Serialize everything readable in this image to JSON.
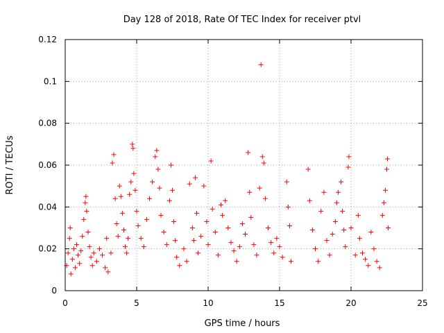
{
  "chart_data": {
    "type": "scatter",
    "title": "Day 128 of 2018, Rate Of TEC Index for receiver ptvl",
    "xlabel": "GPS time / hours",
    "ylabel": "ROTI / TECUs",
    "xlim": [
      0,
      25
    ],
    "ylim": [
      0,
      0.12
    ],
    "xticks": [
      0,
      5,
      10,
      15,
      20,
      25
    ],
    "yticks": [
      0,
      0.02,
      0.04,
      0.06,
      0.08,
      0.1,
      0.12
    ],
    "xtick_labels": [
      "0",
      "5",
      "10",
      "15",
      "20",
      "25"
    ],
    "ytick_labels": [
      "0",
      "0.02",
      "0.04",
      "0.06",
      "0.08",
      "0.1",
      "0.12"
    ],
    "grid": true,
    "marker": "+",
    "marker_color": "#ff0000",
    "series": [
      {
        "name": "ROTI",
        "points": [
          [
            0.1,
            0.012
          ],
          [
            0.2,
            0.018
          ],
          [
            0.3,
            0.025
          ],
          [
            0.35,
            0.03
          ],
          [
            0.4,
            0.008
          ],
          [
            0.5,
            0.015
          ],
          [
            0.6,
            0.02
          ],
          [
            0.7,
            0.011
          ],
          [
            0.8,
            0.022
          ],
          [
            0.9,
            0.017
          ],
          [
            1.0,
            0.013
          ],
          [
            1.1,
            0.019
          ],
          [
            1.2,
            0.026
          ],
          [
            1.3,
            0.034
          ],
          [
            1.4,
            0.042
          ],
          [
            1.45,
            0.045
          ],
          [
            1.5,
            0.038
          ],
          [
            1.6,
            0.028
          ],
          [
            1.7,
            0.021
          ],
          [
            1.8,
            0.016
          ],
          [
            1.9,
            0.012
          ],
          [
            2.0,
            0.018
          ],
          [
            2.2,
            0.014
          ],
          [
            2.4,
            0.02
          ],
          [
            2.6,
            0.017
          ],
          [
            2.8,
            0.011
          ],
          [
            2.9,
            0.025
          ],
          [
            3.0,
            0.009
          ],
          [
            3.2,
            0.018
          ],
          [
            3.3,
            0.061
          ],
          [
            3.4,
            0.065
          ],
          [
            3.5,
            0.044
          ],
          [
            3.6,
            0.032
          ],
          [
            3.7,
            0.026
          ],
          [
            3.8,
            0.05
          ],
          [
            3.9,
            0.045
          ],
          [
            4.0,
            0.037
          ],
          [
            4.1,
            0.029
          ],
          [
            4.2,
            0.021
          ],
          [
            4.3,
            0.018
          ],
          [
            4.4,
            0.025
          ],
          [
            4.5,
            0.046
          ],
          [
            4.6,
            0.052
          ],
          [
            4.7,
            0.07
          ],
          [
            4.75,
            0.068
          ],
          [
            4.8,
            0.056
          ],
          [
            4.9,
            0.048
          ],
          [
            5.0,
            0.038
          ],
          [
            5.1,
            0.031
          ],
          [
            5.3,
            0.025
          ],
          [
            5.5,
            0.021
          ],
          [
            5.7,
            0.034
          ],
          [
            5.9,
            0.044
          ],
          [
            6.1,
            0.052
          ],
          [
            6.3,
            0.064
          ],
          [
            6.4,
            0.067
          ],
          [
            6.5,
            0.058
          ],
          [
            6.6,
            0.049
          ],
          [
            6.7,
            0.036
          ],
          [
            6.9,
            0.028
          ],
          [
            7.1,
            0.022
          ],
          [
            7.3,
            0.043
          ],
          [
            7.4,
            0.06
          ],
          [
            7.5,
            0.048
          ],
          [
            7.6,
            0.033
          ],
          [
            7.7,
            0.024
          ],
          [
            7.8,
            0.016
          ],
          [
            8.0,
            0.012
          ],
          [
            8.3,
            0.02
          ],
          [
            8.5,
            0.014
          ],
          [
            8.7,
            0.051
          ],
          [
            8.9,
            0.03
          ],
          [
            9.0,
            0.024
          ],
          [
            9.1,
            0.054
          ],
          [
            9.2,
            0.037
          ],
          [
            9.3,
            0.018
          ],
          [
            9.5,
            0.026
          ],
          [
            9.7,
            0.05
          ],
          [
            9.9,
            0.033
          ],
          [
            10.0,
            0.022
          ],
          [
            10.2,
            0.062
          ],
          [
            10.3,
            0.039
          ],
          [
            10.5,
            0.028
          ],
          [
            10.7,
            0.017
          ],
          [
            10.9,
            0.041
          ],
          [
            11.0,
            0.036
          ],
          [
            11.2,
            0.043
          ],
          [
            11.4,
            0.03
          ],
          [
            11.6,
            0.023
          ],
          [
            11.8,
            0.019
          ],
          [
            12.0,
            0.014
          ],
          [
            12.2,
            0.021
          ],
          [
            12.4,
            0.032
          ],
          [
            12.6,
            0.027
          ],
          [
            12.8,
            0.066
          ],
          [
            12.9,
            0.047
          ],
          [
            13.0,
            0.035
          ],
          [
            13.2,
            0.022
          ],
          [
            13.4,
            0.017
          ],
          [
            13.6,
            0.049
          ],
          [
            13.7,
            0.108
          ],
          [
            13.8,
            0.064
          ],
          [
            13.9,
            0.061
          ],
          [
            14.0,
            0.044
          ],
          [
            14.2,
            0.03
          ],
          [
            14.4,
            0.023
          ],
          [
            14.6,
            0.018
          ],
          [
            14.8,
            0.025
          ],
          [
            15.0,
            0.021
          ],
          [
            15.2,
            0.016
          ],
          [
            15.5,
            0.052
          ],
          [
            15.6,
            0.04
          ],
          [
            15.7,
            0.031
          ],
          [
            15.8,
            0.014
          ],
          [
            17.0,
            0.058
          ],
          [
            17.1,
            0.043
          ],
          [
            17.3,
            0.029
          ],
          [
            17.5,
            0.02
          ],
          [
            17.7,
            0.014
          ],
          [
            17.9,
            0.038
          ],
          [
            18.1,
            0.047
          ],
          [
            18.3,
            0.024
          ],
          [
            18.5,
            0.017
          ],
          [
            18.7,
            0.027
          ],
          [
            18.9,
            0.033
          ],
          [
            19.0,
            0.042
          ],
          [
            19.1,
            0.047
          ],
          [
            19.3,
            0.052
          ],
          [
            19.4,
            0.038
          ],
          [
            19.5,
            0.029
          ],
          [
            19.6,
            0.021
          ],
          [
            19.8,
            0.059
          ],
          [
            19.85,
            0.064
          ],
          [
            20.0,
            0.03
          ],
          [
            20.3,
            0.017
          ],
          [
            20.5,
            0.036
          ],
          [
            20.6,
            0.025
          ],
          [
            20.8,
            0.018
          ],
          [
            21.0,
            0.015
          ],
          [
            21.2,
            0.012
          ],
          [
            21.4,
            0.028
          ],
          [
            21.6,
            0.02
          ],
          [
            21.8,
            0.014
          ],
          [
            22.0,
            0.011
          ],
          [
            22.2,
            0.036
          ],
          [
            22.3,
            0.042
          ],
          [
            22.4,
            0.048
          ],
          [
            22.5,
            0.058
          ],
          [
            22.55,
            0.063
          ],
          [
            22.6,
            0.03
          ]
        ]
      }
    ]
  }
}
